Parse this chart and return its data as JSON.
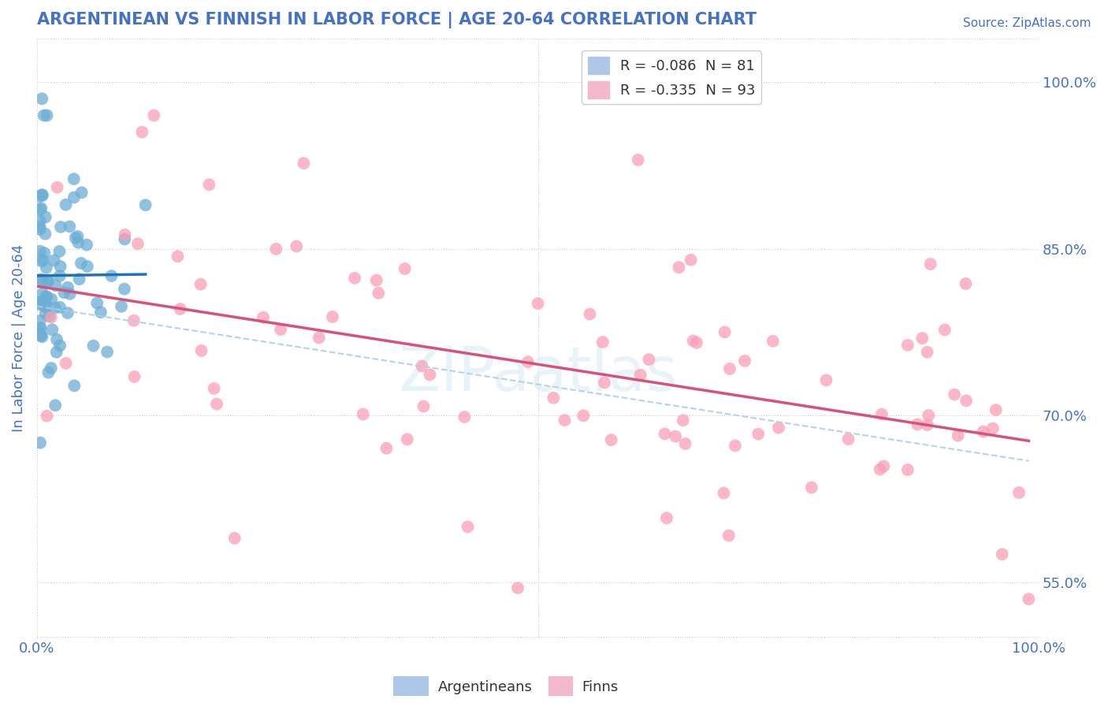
{
  "title": "ARGENTINEAN VS FINNISH IN LABOR FORCE | AGE 20-64 CORRELATION CHART",
  "source": "Source: ZipAtlas.com",
  "ylabel": "In Labor Force | Age 20-64",
  "xlim": [
    0.0,
    1.0
  ],
  "ylim": [
    0.5,
    1.04
  ],
  "yticks": [
    0.55,
    0.7,
    0.85,
    1.0
  ],
  "ytick_labels": [
    "55.0%",
    "70.0%",
    "85.0%",
    "100.0%"
  ],
  "xtick_labels": [
    "0.0%",
    "100.0%"
  ],
  "legend_r1": "R = -0.086  N = 81",
  "legend_r2": "R = -0.335  N = 93",
  "argentinean_color": "#6baed6",
  "finn_color": "#fa9fb5",
  "trend_arg_color": "#2171b5",
  "trend_finn_color": "#d6527a",
  "trend_dashed_color": "#aecde8",
  "background_color": "#ffffff",
  "grid_color": "#cccccc",
  "title_color": "#4472c4",
  "axis_label_color": "#4472c4",
  "tick_color": "#4472c4"
}
